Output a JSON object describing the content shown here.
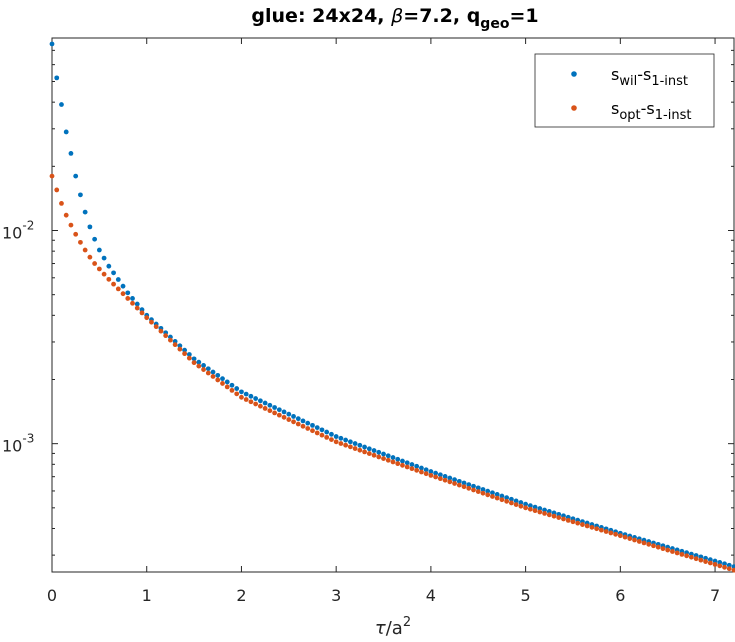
{
  "chart_data": {
    "type": "scatter",
    "title": {
      "prefix": "glue: 24x24, ",
      "symbol": "β",
      "mid": "=7.2, q",
      "subscript": "geo",
      "suffix": "=1"
    },
    "xlabel": {
      "symbol": "τ",
      "text": "/a",
      "superscript": "2"
    },
    "ylabel": "",
    "xlim": [
      0,
      7.2
    ],
    "ylim": [
      0.00025,
      0.08
    ],
    "yscale": "log",
    "x_ticks": [
      "0",
      "1",
      "2",
      "3",
      "4",
      "5",
      "6",
      "7"
    ],
    "y_ticks": [
      {
        "value": 0.01,
        "base": "10",
        "exp": "-2"
      },
      {
        "value": 0.001,
        "base": "10",
        "exp": "-3"
      }
    ],
    "grid": false,
    "legend_position": "top-right",
    "x_step": 0.05,
    "series": [
      {
        "name": {
          "main": "s",
          "sub1": "wil",
          "dash": "-s",
          "sub2": "1-inst"
        },
        "color": "#0072BD",
        "anchors_x": [
          0,
          0.05,
          0.1,
          0.15,
          0.2,
          0.25,
          0.3,
          0.35,
          0.4,
          0.45,
          0.5,
          0.6,
          0.8,
          1.0,
          1.5,
          2.0,
          3.0,
          4.0,
          5.0,
          6.0,
          7.2
        ],
        "anchors_y": [
          0.075,
          0.052,
          0.039,
          0.029,
          0.023,
          0.018,
          0.0147,
          0.0122,
          0.0104,
          0.0091,
          0.0081,
          0.0068,
          0.0051,
          0.004,
          0.0025,
          0.00175,
          0.00108,
          0.00074,
          0.00052,
          0.00038,
          0.000265
        ]
      },
      {
        "name": {
          "main": "s",
          "sub1": "opt",
          "dash": "-s",
          "sub2": "1-inst"
        },
        "color": "#D95319",
        "anchors_x": [
          0,
          0.05,
          0.1,
          0.15,
          0.2,
          0.25,
          0.3,
          0.35,
          0.4,
          0.45,
          0.5,
          0.6,
          0.8,
          1.0,
          1.5,
          2.0,
          3.0,
          4.0,
          5.0,
          6.0,
          7.2
        ],
        "anchors_y": [
          0.018,
          0.0155,
          0.0134,
          0.0118,
          0.0106,
          0.0096,
          0.0088,
          0.0081,
          0.0075,
          0.007,
          0.0066,
          0.0059,
          0.0048,
          0.0039,
          0.0024,
          0.00165,
          0.00102,
          0.00071,
          0.0005,
          0.00037,
          0.000255
        ]
      }
    ]
  }
}
